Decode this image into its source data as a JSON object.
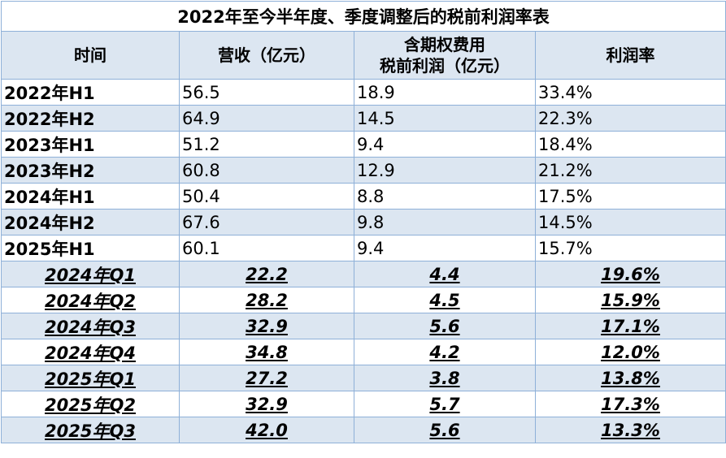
{
  "title": "2022年至今半年度、季度调整后的税前利润率表",
  "table": {
    "header": [
      [
        "时间"
      ],
      [
        "营收（亿元）"
      ],
      [
        "含期权费用",
        "税前利润（亿元）"
      ],
      [
        "利润率"
      ]
    ],
    "sections": [
      {
        "rows": [
          [
            "2022年H1",
            "56.5",
            "18.9",
            "33.4%"
          ],
          [
            "2022年H2",
            "64.9",
            "14.5",
            "22.3%"
          ],
          [
            "2023年H1",
            "51.2",
            "9.4",
            "18.4%"
          ],
          [
            "2023年H2",
            "60.8",
            "12.9",
            "21.2%"
          ],
          [
            "2024年H1",
            "50.4",
            "8.8",
            "17.5%"
          ],
          [
            "2024年H2",
            "67.6",
            "9.8",
            "14.5%"
          ],
          [
            "2025年H1",
            "60.1",
            "9.4",
            "15.7%"
          ]
        ]
      },
      {
        "rows": [
          [
            "2024年Q1",
            "22.2",
            "4.4",
            "19.6%"
          ],
          [
            "2024年Q2",
            "28.2",
            "4.5",
            "15.9%"
          ],
          [
            "2024年Q3",
            "32.9",
            "5.6",
            "17.1%"
          ],
          [
            "2024年Q4",
            "34.8",
            "4.2",
            "12.0%"
          ],
          [
            "2025年Q1",
            "27.2",
            "3.8",
            "13.8%"
          ],
          [
            "2025年Q2",
            "32.9",
            "5.7",
            "17.3%"
          ],
          [
            "2025年Q3",
            "42.0",
            "5.6",
            "13.3%"
          ]
        ]
      }
    ]
  }
}
